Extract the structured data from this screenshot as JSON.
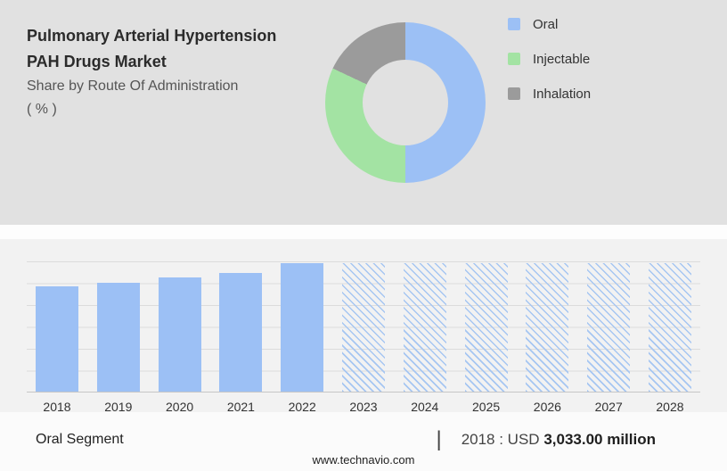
{
  "header": {
    "title_line1": "Pulmonary Arterial Hypertension",
    "title_line2": "PAH Drugs Market",
    "subtitle_line1": "Share by Route Of Administration",
    "subtitle_line2": "( % )"
  },
  "chart_data": [
    {
      "type": "pie",
      "title": "Share by Route Of Administration ( % )",
      "labels": [
        "Oral",
        "Injectable",
        "Inhalation"
      ],
      "values": [
        50,
        32,
        18
      ],
      "colors": [
        "#9cc0f5",
        "#a3e3a3",
        "#9b9b9b"
      ],
      "donut": true,
      "legend_position": "right"
    },
    {
      "type": "bar",
      "title": "",
      "xlabel": "",
      "ylabel": "",
      "categories": [
        "2018",
        "2019",
        "2020",
        "2021",
        "2022",
        "2023",
        "2024",
        "2025",
        "2026",
        "2027",
        "2028"
      ],
      "values": [
        3033,
        3135,
        3290,
        3420,
        3700,
        null,
        null,
        null,
        null,
        null,
        null
      ],
      "forecast_categories": [
        "2023",
        "2024",
        "2025",
        "2026",
        "2027",
        "2028"
      ],
      "forecast_hatched": true,
      "bar_color": "#9cc0f5",
      "grid": true
    }
  ],
  "footer": {
    "segment_label": "Oral Segment",
    "separator": "|",
    "value_prefix": "2018 : USD",
    "value_bold": "3,033.00 million",
    "website": "www.technavio.com"
  }
}
